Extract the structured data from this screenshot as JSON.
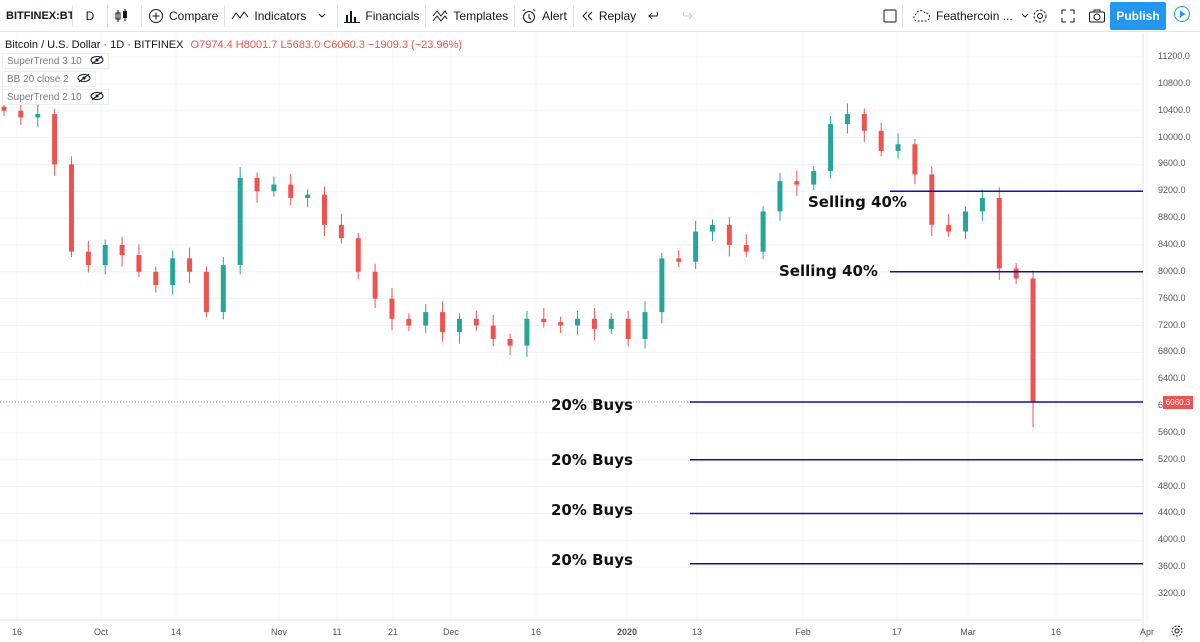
{
  "toolbar": {
    "symbol": "BITFINEX:BT",
    "interval": "D",
    "compare": "Compare",
    "indicators": "Indicators",
    "financials": "Financials",
    "templates": "Templates",
    "alert": "Alert",
    "replay": "Replay",
    "layout_name": "Feathercoin ...",
    "publish": "Publish"
  },
  "legend": {
    "title": "Bitcoin / U.S. Dollar · 1D · BITFINEX",
    "ohlc": "O7974.4 H8001.7 L5683.0 C6060.3 −1909.3 (−23.96%)"
  },
  "indicators": [
    "SuperTrend 3 10",
    "BB 20 close 2",
    "SuperTrend 2 10"
  ],
  "colors": {
    "up": "#26a69a",
    "down": "#ef5350",
    "level_line": "#0d0dbd",
    "accent": "#2196f3"
  },
  "current_price": "6060.3",
  "annotations": {
    "sell_1": "Selling 40%",
    "sell_2": "Selling 40%",
    "buy_1": "20% Buys",
    "buy_2": "20% Buys",
    "buy_3": "20% Buys",
    "buy_4": "20% Buys"
  },
  "chart_data": {
    "type": "candlestick",
    "title": "Bitcoin / U.S. Dollar · 1D · BITFINEX",
    "y_ticks": [
      "11200.0",
      "10800.0",
      "10400.0",
      "10000.0",
      "9600.0",
      "9200.0",
      "8800.0",
      "8400.0",
      "8000.0",
      "7600.0",
      "7200.0",
      "6800.0",
      "6400.0",
      "6000.0",
      "5600.0",
      "5200.0",
      "4800.0",
      "4400.0",
      "4000.0",
      "3600.0",
      "3200.0"
    ],
    "x_ticks": [
      "16",
      "Oct",
      "14",
      "Nov",
      "11",
      "21",
      "Dec",
      "16",
      "2020",
      "13",
      "Feb",
      "17",
      "Mar",
      "16",
      "Apr"
    ],
    "ylim": [
      3000,
      11500
    ],
    "levels": [
      9200,
      8000,
      6060.3,
      5200,
      4400,
      3650
    ],
    "series_close_approx": [
      10400,
      10300,
      10350,
      9600,
      8300,
      8100,
      8400,
      8250,
      8000,
      7800,
      8200,
      8000,
      7400,
      8100,
      9400,
      9200,
      9300,
      9100,
      9150,
      8700,
      8500,
      8000,
      7600,
      7300,
      7200,
      7400,
      7100,
      7300,
      7200,
      7000,
      6900,
      7300,
      7250,
      7200,
      7300,
      7150,
      7300,
      7000,
      7400,
      8200,
      8150,
      8600,
      8700,
      8400,
      8300,
      8900,
      9350,
      9300,
      9500,
      10200,
      10350,
      10100,
      9800,
      9900,
      9450,
      8700,
      8600,
      8900,
      9100,
      8050,
      7900,
      6060.3
    ]
  }
}
